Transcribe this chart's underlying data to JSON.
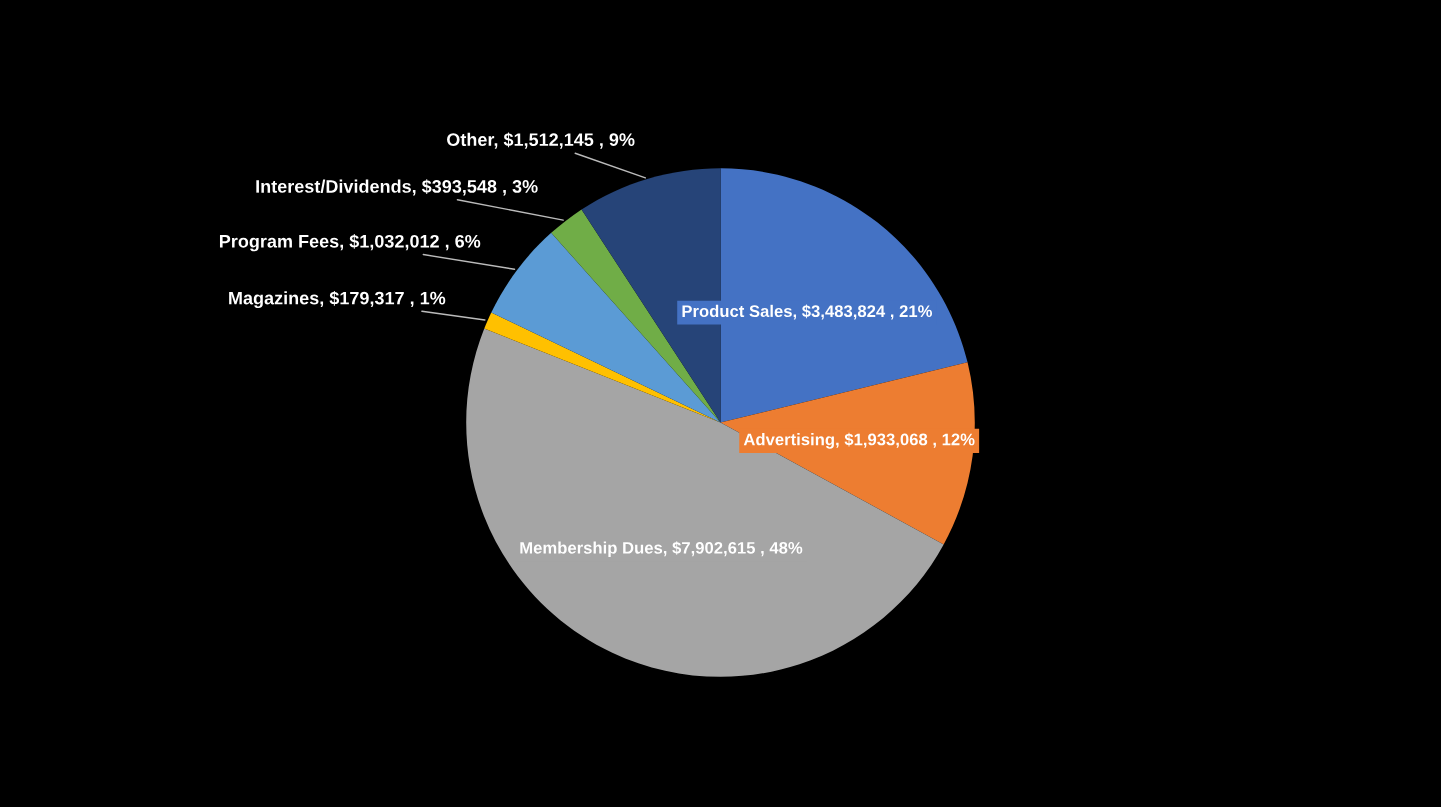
{
  "chart_data": {
    "type": "pie",
    "categories": [
      "Product Sales",
      "Advertising",
      "Membership Dues",
      "Magazines",
      "Program Fees",
      "Interest/Dividends",
      "Other"
    ],
    "values": [
      3483824,
      1933068,
      7902615,
      179317,
      1032012,
      393548,
      1512145
    ],
    "colors": [
      "#4472c4",
      "#ed7d31",
      "#a5a5a5",
      "#ffc000",
      "#5b9bd5",
      "#70ad47",
      "#264478"
    ],
    "value_labels": [
      "$3,483,824 , 21%",
      "$1,933,068 , 12%",
      "$7,902,615 , 48%",
      "$179,317 , 1%",
      "$1,032,012 , 6%",
      "$393,548 , 3%",
      "$1,512,145 , 9%"
    ]
  }
}
